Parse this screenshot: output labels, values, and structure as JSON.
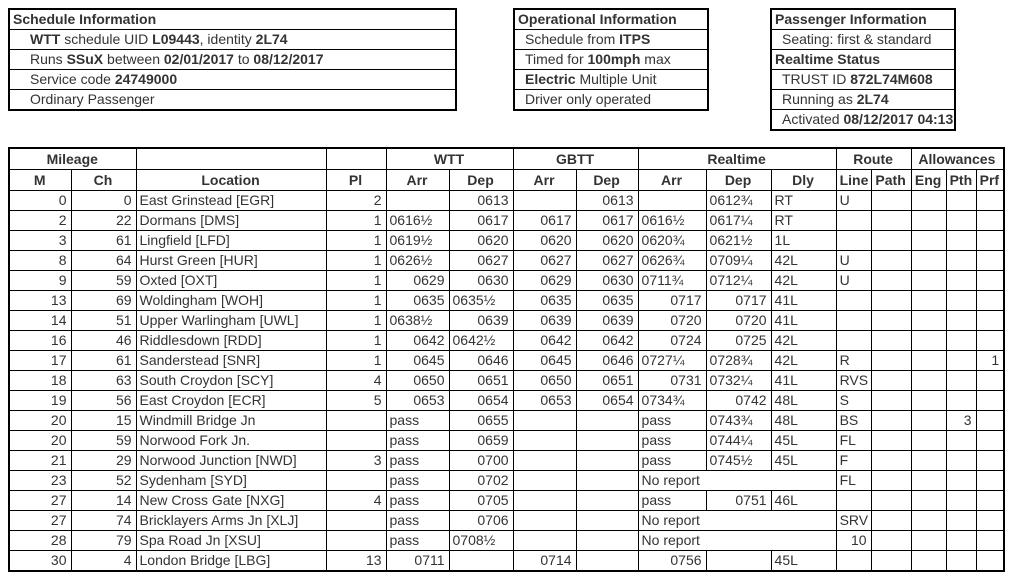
{
  "colors": {
    "text": "#333333",
    "border": "#000000",
    "background": "#ffffff"
  },
  "info_boxes": [
    {
      "name": "schedule-information",
      "rows": [
        {
          "type": "header",
          "segments": [
            {
              "t": "Schedule Information",
              "b": true
            }
          ]
        },
        {
          "type": "content",
          "segments": [
            {
              "t": "WTT",
              "b": true
            },
            {
              "t": " schedule UID ",
              "b": false
            },
            {
              "t": "L09443",
              "b": true
            },
            {
              "t": ", identity ",
              "b": false
            },
            {
              "t": "2L74",
              "b": true
            }
          ]
        },
        {
          "type": "content",
          "segments": [
            {
              "t": "Runs ",
              "b": false
            },
            {
              "t": "SSuX",
              "b": true
            },
            {
              "t": " between ",
              "b": false
            },
            {
              "t": "02/01/2017",
              "b": true
            },
            {
              "t": " to ",
              "b": false
            },
            {
              "t": "08/12/2017",
              "b": true
            }
          ]
        },
        {
          "type": "content",
          "segments": [
            {
              "t": "Service code ",
              "b": false
            },
            {
              "t": "24749000",
              "b": true
            }
          ]
        },
        {
          "type": "content",
          "segments": [
            {
              "t": "Ordinary Passenger",
              "b": false
            }
          ]
        }
      ]
    },
    {
      "name": "operational-information",
      "rows": [
        {
          "type": "header",
          "segments": [
            {
              "t": "Operational Information",
              "b": true
            }
          ]
        },
        {
          "type": "content",
          "segments": [
            {
              "t": "Schedule from ",
              "b": false
            },
            {
              "t": "ITPS",
              "b": true
            }
          ]
        },
        {
          "type": "content",
          "segments": [
            {
              "t": "Timed for ",
              "b": false
            },
            {
              "t": "100mph",
              "b": true
            },
            {
              "t": " max",
              "b": false
            }
          ]
        },
        {
          "type": "content",
          "segments": [
            {
              "t": "Electric",
              "b": true
            },
            {
              "t": " Multiple Unit",
              "b": false
            }
          ]
        },
        {
          "type": "content",
          "segments": [
            {
              "t": "Driver only operated",
              "b": false
            }
          ]
        }
      ]
    },
    {
      "name": "passenger-information",
      "rows": [
        {
          "type": "header",
          "segments": [
            {
              "t": "Passenger Information",
              "b": true
            }
          ]
        },
        {
          "type": "content",
          "segments": [
            {
              "t": "Seating: first & standard",
              "b": false
            }
          ]
        },
        {
          "type": "header",
          "segments": [
            {
              "t": "Realtime Status",
              "b": true
            }
          ]
        },
        {
          "type": "content",
          "segments": [
            {
              "t": "TRUST ID ",
              "b": false
            },
            {
              "t": "872L74M608",
              "b": true
            }
          ]
        },
        {
          "type": "content",
          "segments": [
            {
              "t": "Running as ",
              "b": false
            },
            {
              "t": "2L74",
              "b": true
            }
          ]
        },
        {
          "type": "content",
          "segments": [
            {
              "t": "Activated ",
              "b": false
            },
            {
              "t": "08/12/2017 04:13",
              "b": true
            }
          ]
        }
      ]
    }
  ],
  "table": {
    "groups": [
      {
        "label": "Mileage",
        "span": 2
      },
      {
        "label": "",
        "span": 1
      },
      {
        "label": "",
        "span": 1
      },
      {
        "label": "WTT",
        "span": 2
      },
      {
        "label": "GBTT",
        "span": 2
      },
      {
        "label": "Realtime",
        "span": 3
      },
      {
        "label": "Route",
        "span": 2
      },
      {
        "label": "Allowances",
        "span": 3
      }
    ],
    "columns": [
      {
        "key": "m",
        "label": "M",
        "align": "right"
      },
      {
        "key": "ch",
        "label": "Ch",
        "align": "right"
      },
      {
        "key": "location",
        "label": "Location",
        "align": "left"
      },
      {
        "key": "pl",
        "label": "Pl",
        "align": "right"
      },
      {
        "key": "wtt_arr",
        "label": "Arr",
        "align": "right"
      },
      {
        "key": "wtt_dep",
        "label": "Dep",
        "align": "right"
      },
      {
        "key": "gbtt_arr",
        "label": "Arr",
        "align": "right"
      },
      {
        "key": "gbtt_dep",
        "label": "Dep",
        "align": "right"
      },
      {
        "key": "rt_arr",
        "label": "Arr",
        "align": "right"
      },
      {
        "key": "rt_dep",
        "label": "Dep",
        "align": "right"
      },
      {
        "key": "dly",
        "label": "Dly",
        "align": "left"
      },
      {
        "key": "line",
        "label": "Line",
        "align": "left"
      },
      {
        "key": "path",
        "label": "Path",
        "align": "right"
      },
      {
        "key": "eng",
        "label": "Eng",
        "align": "right"
      },
      {
        "key": "pth",
        "label": "Pth",
        "align": "right"
      },
      {
        "key": "prf",
        "label": "Prf",
        "align": "right"
      }
    ],
    "no_report_text": "No report",
    "rows": [
      {
        "cells": {
          "m": "0",
          "ch": "0",
          "location": "East Grinstead [EGR]",
          "pl": "2",
          "wtt_arr": "",
          "wtt_dep": "0613",
          "gbtt_arr": "",
          "gbtt_dep": "0613",
          "rt_arr": "",
          "rt_dep": "0612¾",
          "dly": "RT",
          "line": "U",
          "path": "",
          "eng": "",
          "pth": "",
          "prf": ""
        }
      },
      {
        "cells": {
          "m": "2",
          "ch": "22",
          "location": "Dormans [DMS]",
          "pl": "1",
          "wtt_arr": "0616½",
          "wtt_dep": "0617",
          "gbtt_arr": "0617",
          "gbtt_dep": "0617",
          "rt_arr": "0616½",
          "rt_dep": "0617¼",
          "dly": "RT",
          "line": "",
          "path": "",
          "eng": "",
          "pth": "",
          "prf": ""
        }
      },
      {
        "cells": {
          "m": "3",
          "ch": "61",
          "location": "Lingfield [LFD]",
          "pl": "1",
          "wtt_arr": "0619½",
          "wtt_dep": "0620",
          "gbtt_arr": "0620",
          "gbtt_dep": "0620",
          "rt_arr": "0620¾",
          "rt_dep": "0621½",
          "dly": "1L",
          "line": "",
          "path": "",
          "eng": "",
          "pth": "",
          "prf": ""
        }
      },
      {
        "cells": {
          "m": "8",
          "ch": "64",
          "location": "Hurst Green [HUR]",
          "pl": "1",
          "wtt_arr": "0626½",
          "wtt_dep": "0627",
          "gbtt_arr": "0627",
          "gbtt_dep": "0627",
          "rt_arr": "0626¾",
          "rt_dep": "0709¼",
          "dly": "42L",
          "line": "U",
          "path": "",
          "eng": "",
          "pth": "",
          "prf": ""
        }
      },
      {
        "cells": {
          "m": "9",
          "ch": "59",
          "location": "Oxted [OXT]",
          "pl": "1",
          "wtt_arr": "0629",
          "wtt_dep": "0630",
          "gbtt_arr": "0629",
          "gbtt_dep": "0630",
          "rt_arr": "0711¾",
          "rt_dep": "0712¼",
          "dly": "42L",
          "line": "U",
          "path": "",
          "eng": "",
          "pth": "",
          "prf": ""
        }
      },
      {
        "cells": {
          "m": "13",
          "ch": "69",
          "location": "Woldingham [WOH]",
          "pl": "1",
          "wtt_arr": "0635",
          "wtt_dep": "0635½",
          "gbtt_arr": "0635",
          "gbtt_dep": "0635",
          "rt_arr": "0717",
          "rt_dep": "0717",
          "dly": "41L",
          "line": "",
          "path": "",
          "eng": "",
          "pth": "",
          "prf": ""
        }
      },
      {
        "cells": {
          "m": "14",
          "ch": "51",
          "location": "Upper Warlingham [UWL]",
          "pl": "1",
          "wtt_arr": "0638½",
          "wtt_dep": "0639",
          "gbtt_arr": "0639",
          "gbtt_dep": "0639",
          "rt_arr": "0720",
          "rt_dep": "0720",
          "dly": "41L",
          "line": "",
          "path": "",
          "eng": "",
          "pth": "",
          "prf": ""
        }
      },
      {
        "cells": {
          "m": "16",
          "ch": "46",
          "location": "Riddlesdown [RDD]",
          "pl": "1",
          "wtt_arr": "0642",
          "wtt_dep": "0642½",
          "gbtt_arr": "0642",
          "gbtt_dep": "0642",
          "rt_arr": "0724",
          "rt_dep": "0725",
          "dly": "42L",
          "line": "",
          "path": "",
          "eng": "",
          "pth": "",
          "prf": ""
        }
      },
      {
        "cells": {
          "m": "17",
          "ch": "61",
          "location": "Sanderstead [SNR]",
          "pl": "1",
          "wtt_arr": "0645",
          "wtt_dep": "0646",
          "gbtt_arr": "0645",
          "gbtt_dep": "0646",
          "rt_arr": "0727¼",
          "rt_dep": "0728¾",
          "dly": "42L",
          "line": "R",
          "path": "",
          "eng": "",
          "pth": "",
          "prf": "1"
        }
      },
      {
        "cells": {
          "m": "18",
          "ch": "63",
          "location": "South Croydon [SCY]",
          "pl": "4",
          "wtt_arr": "0650",
          "wtt_dep": "0651",
          "gbtt_arr": "0650",
          "gbtt_dep": "0651",
          "rt_arr": "0731",
          "rt_dep": "0732¼",
          "dly": "41L",
          "line": "RVS",
          "path": "",
          "eng": "",
          "pth": "",
          "prf": ""
        }
      },
      {
        "cells": {
          "m": "19",
          "ch": "56",
          "location": "East Croydon [ECR]",
          "pl": "5",
          "wtt_arr": "0653",
          "wtt_dep": "0654",
          "gbtt_arr": "0653",
          "gbtt_dep": "0654",
          "rt_arr": "0734¾",
          "rt_dep": "0742",
          "dly": "48L",
          "line": "S",
          "path": "",
          "eng": "",
          "pth": "",
          "prf": ""
        }
      },
      {
        "cells": {
          "m": "20",
          "ch": "15",
          "location": "Windmill Bridge Jn",
          "pl": "",
          "wtt_arr": "pass",
          "wtt_dep": "0655",
          "gbtt_arr": "",
          "gbtt_dep": "",
          "rt_arr": "pass",
          "rt_dep": "0743¾",
          "dly": "48L",
          "line": "BS",
          "path": "",
          "eng": "",
          "pth": "3",
          "prf": ""
        }
      },
      {
        "cells": {
          "m": "20",
          "ch": "59",
          "location": "Norwood Fork Jn.",
          "pl": "",
          "wtt_arr": "pass",
          "wtt_dep": "0659",
          "gbtt_arr": "",
          "gbtt_dep": "",
          "rt_arr": "pass",
          "rt_dep": "0744¼",
          "dly": "45L",
          "line": "FL",
          "path": "",
          "eng": "",
          "pth": "",
          "prf": ""
        }
      },
      {
        "cells": {
          "m": "21",
          "ch": "29",
          "location": "Norwood Junction [NWD]",
          "pl": "3",
          "wtt_arr": "pass",
          "wtt_dep": "0700",
          "gbtt_arr": "",
          "gbtt_dep": "",
          "rt_arr": "pass",
          "rt_dep": "0745½",
          "dly": "45L",
          "line": "F",
          "path": "",
          "eng": "",
          "pth": "",
          "prf": ""
        }
      },
      {
        "note": true,
        "cells": {
          "m": "23",
          "ch": "52",
          "location": "Sydenham [SYD]",
          "pl": "",
          "wtt_arr": "pass",
          "wtt_dep": "0702",
          "gbtt_arr": "",
          "gbtt_dep": "",
          "line": "FL",
          "path": "",
          "eng": "",
          "pth": "",
          "prf": ""
        }
      },
      {
        "cells": {
          "m": "27",
          "ch": "14",
          "location": "New Cross Gate [NXG]",
          "pl": "4",
          "wtt_arr": "pass",
          "wtt_dep": "0705",
          "gbtt_arr": "",
          "gbtt_dep": "",
          "rt_arr": "pass",
          "rt_dep": "0751",
          "dly": "46L",
          "line": "",
          "path": "",
          "eng": "",
          "pth": "",
          "prf": ""
        }
      },
      {
        "note": true,
        "cells": {
          "m": "27",
          "ch": "74",
          "location": "Bricklayers Arms Jn [XLJ]",
          "pl": "",
          "wtt_arr": "pass",
          "wtt_dep": "0706",
          "gbtt_arr": "",
          "gbtt_dep": "",
          "line": "SRV",
          "path": "",
          "eng": "",
          "pth": "",
          "prf": ""
        }
      },
      {
        "note": true,
        "cells": {
          "m": "28",
          "ch": "79",
          "location": "Spa Road Jn [XSU]",
          "pl": "",
          "wtt_arr": "pass",
          "wtt_dep": "0708½",
          "gbtt_arr": "",
          "gbtt_dep": "",
          "line": "10",
          "path": "",
          "eng": "",
          "pth": "",
          "prf": ""
        }
      },
      {
        "cells": {
          "m": "30",
          "ch": "4",
          "location": "London Bridge [LBG]",
          "pl": "13",
          "wtt_arr": "0711",
          "wtt_dep": "",
          "gbtt_arr": "0714",
          "gbtt_dep": "",
          "rt_arr": "0756",
          "rt_dep": "",
          "dly": "45L",
          "line": "",
          "path": "",
          "eng": "",
          "pth": "",
          "prf": ""
        }
      }
    ]
  }
}
